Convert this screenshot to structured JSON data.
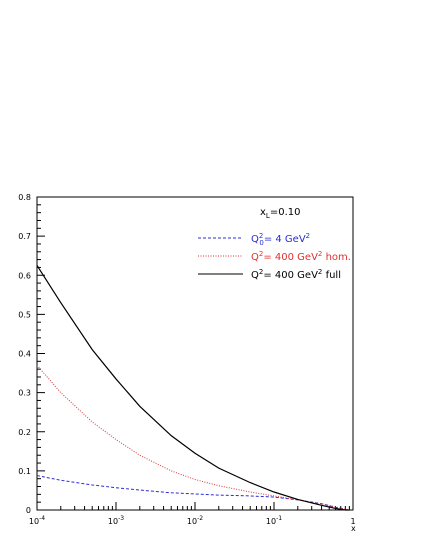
{
  "chart_data": {
    "type": "line",
    "xlabel": "x",
    "ylabel": "",
    "x_scale": "log",
    "xlim": [
      0.0001,
      1
    ],
    "ylim": [
      0,
      0.8
    ],
    "x_ticks": [
      0.0001,
      0.001,
      0.01,
      0.1,
      1
    ],
    "x_tick_labels": [
      {
        "base": "10",
        "exp": "-4"
      },
      {
        "base": "10",
        "exp": "-3"
      },
      {
        "base": "10",
        "exp": "-2"
      },
      {
        "base": "10",
        "exp": "-1"
      },
      {
        "base": "1",
        "exp": ""
      }
    ],
    "y_ticks": [
      0,
      0.1,
      0.2,
      0.3,
      0.4,
      0.5,
      0.6,
      0.7,
      0.8
    ],
    "y_tick_labels": [
      "0",
      "0.1",
      "0.2",
      "0.3",
      "0.4",
      "0.5",
      "0.6",
      "0.7",
      "0.8"
    ],
    "grid": false,
    "legend_position": "top-right",
    "annotation": {
      "main": "x",
      "sub": "L",
      "rest": "=0.10"
    },
    "series": [
      {
        "legend": {
          "main": "Q",
          "sup": "2",
          "sub": "0",
          "rest": "= 4 GeV",
          "sup2": "2",
          "tail": ""
        },
        "color": "#2b2bd6",
        "style": "dashed",
        "points": [
          [
            0.0001,
            0.088
          ],
          [
            0.0002,
            0.076
          ],
          [
            0.0005,
            0.064
          ],
          [
            0.001,
            0.057
          ],
          [
            0.002,
            0.051
          ],
          [
            0.005,
            0.044
          ],
          [
            0.01,
            0.041
          ],
          [
            0.02,
            0.038
          ],
          [
            0.05,
            0.036
          ],
          [
            0.1,
            0.033
          ],
          [
            0.2,
            0.026
          ],
          [
            0.4,
            0.016
          ],
          [
            0.6,
            0.007
          ],
          [
            0.8,
            0.001
          ],
          [
            0.9,
            0.0
          ]
        ]
      },
      {
        "legend": {
          "main": "Q",
          "sup": "2",
          "sub": "",
          "rest": "= 400 GeV",
          "sup2": "2",
          "tail": " hom."
        },
        "color": "#e03030",
        "style": "dotted",
        "points": [
          [
            0.0001,
            0.37
          ],
          [
            0.0002,
            0.3
          ],
          [
            0.0005,
            0.225
          ],
          [
            0.001,
            0.18
          ],
          [
            0.002,
            0.14
          ],
          [
            0.005,
            0.1
          ],
          [
            0.01,
            0.078
          ],
          [
            0.02,
            0.062
          ],
          [
            0.05,
            0.046
          ],
          [
            0.1,
            0.036
          ],
          [
            0.2,
            0.026
          ],
          [
            0.4,
            0.016
          ],
          [
            0.6,
            0.008
          ],
          [
            0.8,
            0.002
          ],
          [
            0.9,
            0.0
          ]
        ]
      },
      {
        "legend": {
          "main": "Q",
          "sup": "2",
          "sub": "",
          "rest": "= 400 GeV",
          "sup2": "2",
          "tail": " full"
        },
        "color": "#000000",
        "style": "solid",
        "points": [
          [
            0.0001,
            0.625
          ],
          [
            0.0002,
            0.53
          ],
          [
            0.0005,
            0.41
          ],
          [
            0.001,
            0.335
          ],
          [
            0.002,
            0.265
          ],
          [
            0.005,
            0.19
          ],
          [
            0.01,
            0.145
          ],
          [
            0.02,
            0.107
          ],
          [
            0.05,
            0.07
          ],
          [
            0.1,
            0.046
          ],
          [
            0.2,
            0.027
          ],
          [
            0.4,
            0.012
          ],
          [
            0.6,
            0.004
          ],
          [
            0.8,
            0.0
          ],
          [
            0.9,
            0.0
          ]
        ]
      }
    ]
  }
}
